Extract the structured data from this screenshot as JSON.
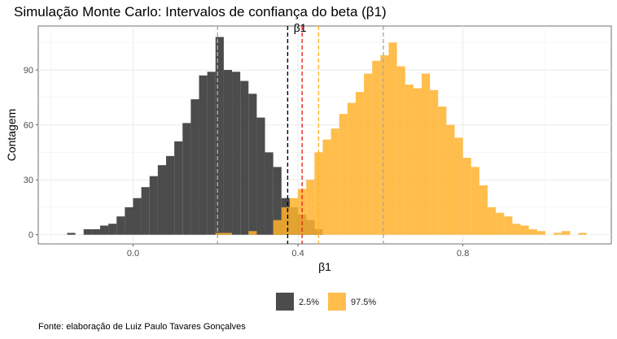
{
  "chart_data": {
    "type": "bar",
    "title": "Simulação Monte Carlo: Intervalos de confiança do beta (β1)",
    "xlabel": "β1",
    "ylabel": "Contagem",
    "caption": "Fonte: elaboração de Luiz Paulo Tavares Gonçalves",
    "xlim": [
      -0.23,
      1.16
    ],
    "ylim": [
      -5,
      114
    ],
    "x_ticks": [
      {
        "value": 0.0,
        "label": "0.0"
      },
      {
        "value": 0.4,
        "label": "0.4"
      },
      {
        "value": 0.8,
        "label": "0.8"
      }
    ],
    "y_ticks": [
      {
        "value": 0,
        "label": "0"
      },
      {
        "value": 30,
        "label": "30"
      },
      {
        "value": 60,
        "label": "60"
      },
      {
        "value": 90,
        "label": "90"
      }
    ],
    "grid": true,
    "legend_position": "bottom",
    "bin_width": 0.02,
    "series": [
      {
        "name": "2.5%",
        "color": "#333333",
        "opacity": 0.88,
        "bin_starts": [
          -0.16,
          -0.14,
          -0.12,
          -0.1,
          -0.08,
          -0.06,
          -0.04,
          -0.02,
          0.0,
          0.02,
          0.04,
          0.06,
          0.08,
          0.1,
          0.12,
          0.14,
          0.16,
          0.18,
          0.2,
          0.22,
          0.24,
          0.26,
          0.28,
          0.3,
          0.32,
          0.34,
          0.36,
          0.38,
          0.4,
          0.42,
          0.44
        ],
        "counts": [
          1,
          0,
          3,
          3,
          5,
          6,
          10,
          15,
          20,
          26,
          32,
          38,
          43,
          51,
          61,
          74,
          87,
          89,
          108,
          90,
          89,
          84,
          77,
          64,
          45,
          37,
          20,
          15,
          11,
          8,
          3
        ]
      },
      {
        "name": "97.5%",
        "color": "#ffb22c",
        "opacity": 0.85,
        "bin_starts": [
          0.2,
          0.22,
          0.24,
          0.26,
          0.28,
          0.3,
          0.32,
          0.34,
          0.36,
          0.38,
          0.4,
          0.42,
          0.44,
          0.46,
          0.48,
          0.5,
          0.52,
          0.54,
          0.56,
          0.58,
          0.6,
          0.62,
          0.64,
          0.66,
          0.68,
          0.7,
          0.72,
          0.74,
          0.76,
          0.78,
          0.8,
          0.82,
          0.84,
          0.86,
          0.88,
          0.9,
          0.92,
          0.94,
          0.96,
          0.98,
          1.0,
          1.02,
          1.04,
          1.06,
          1.08
        ],
        "counts": [
          1,
          1,
          0,
          0,
          2,
          0,
          0,
          8,
          15,
          20,
          25,
          30,
          45,
          52,
          58,
          66,
          72,
          78,
          88,
          95,
          98,
          105,
          92,
          82,
          80,
          88,
          79,
          70,
          60,
          53,
          42,
          37,
          27,
          15,
          12,
          10,
          6,
          5,
          3,
          2,
          0,
          1,
          2,
          0,
          1
        ]
      }
    ],
    "vlines": [
      {
        "x": 0.205,
        "color": "#aaaaaa",
        "style": "dashed"
      },
      {
        "x": 0.607,
        "color": "#aaaaaa",
        "style": "dashed"
      },
      {
        "x": 0.375,
        "color": "#000000",
        "style": "dashed"
      },
      {
        "x": 0.41,
        "color": "#e8281e",
        "style": "dashed"
      },
      {
        "x": 0.45,
        "color": "#ffb22c",
        "style": "dashed"
      }
    ],
    "annotation": {
      "text": "β1",
      "x": 0.405,
      "y": 111
    }
  }
}
